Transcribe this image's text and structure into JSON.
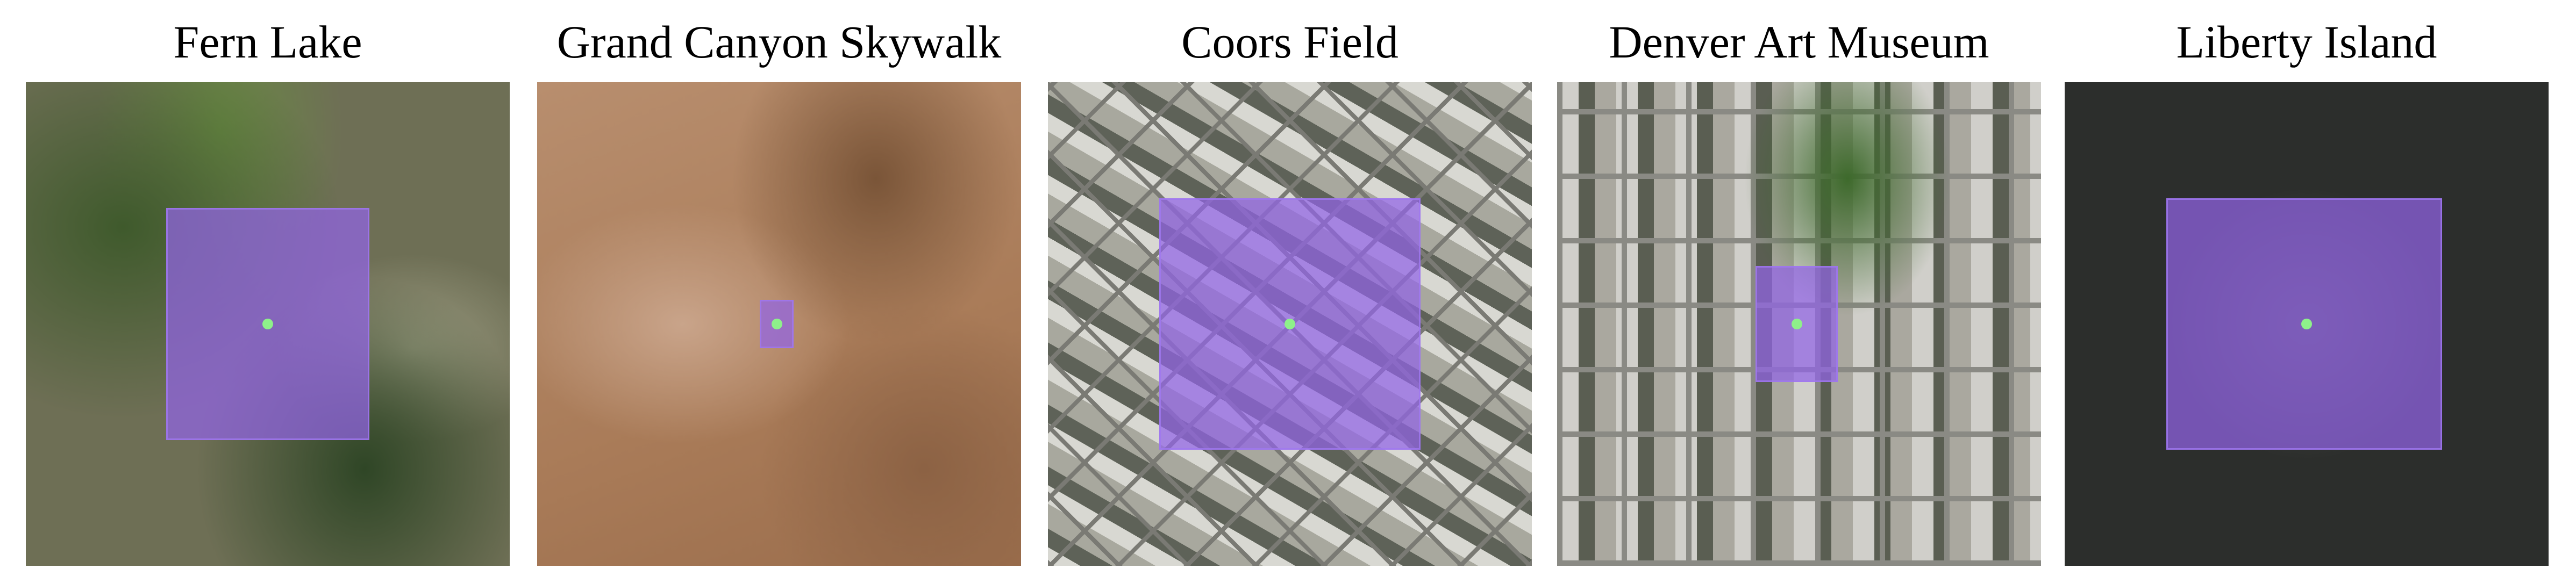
{
  "panels": [
    {
      "title": "Fern Lake"
    },
    {
      "title": "Grand Canyon Skywalk"
    },
    {
      "title": "Coors Field"
    },
    {
      "title": "Denver Art Museum"
    },
    {
      "title": "Liberty Island"
    }
  ],
  "colors": {
    "box": "#9164e6",
    "point": "#8ef08a"
  }
}
